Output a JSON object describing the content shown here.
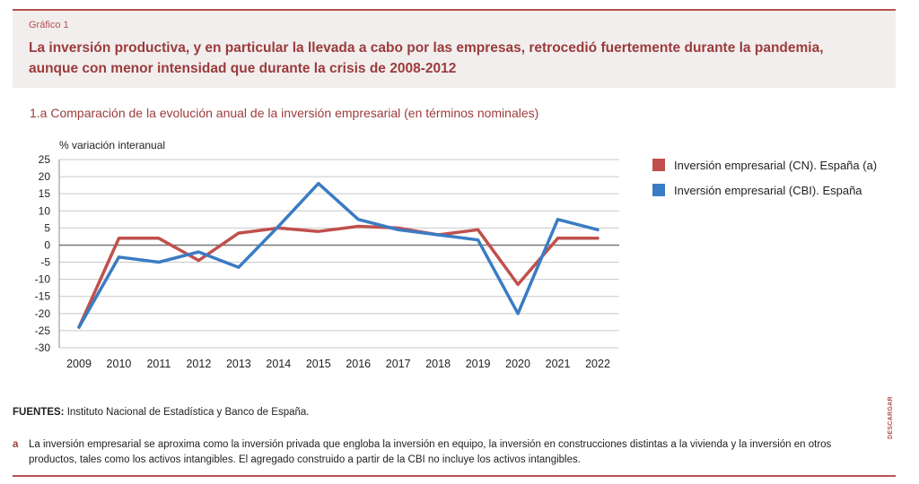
{
  "header": {
    "figure_label": "Gráfico 1",
    "title": "La inversión productiva, y en particular la llevada a cabo por las empresas, retrocedió fuertemente durante la pandemia, aunque con menor intensidad que durante la crisis de 2008-2012"
  },
  "chart_data": {
    "type": "line",
    "title": "1.a  Comparación de la evolución anual de la inversión empresarial (en términos nominales)",
    "ylabel": "% variación interanual",
    "xlabel": "",
    "categories": [
      "2009",
      "2010",
      "2011",
      "2012",
      "2013",
      "2014",
      "2015",
      "2016",
      "2017",
      "2018",
      "2019",
      "2020",
      "2021",
      "2022"
    ],
    "ylim": [
      -30,
      25
    ],
    "yticks": [
      25,
      20,
      15,
      10,
      5,
      0,
      -5,
      -10,
      -15,
      -20,
      -25,
      -30
    ],
    "grid": true,
    "legend_position": "right",
    "series": [
      {
        "name": "Inversión empresarial (CN). España (a)",
        "color": "#c0504d",
        "values": [
          -24,
          2,
          2,
          -4.5,
          3.5,
          5,
          4,
          5.5,
          5,
          3,
          4.5,
          -11.5,
          2,
          2
        ]
      },
      {
        "name": "Inversión empresarial (CBI). España",
        "color": "#3a7cc3",
        "values": [
          -24,
          -3.5,
          -5,
          -2,
          -6.5,
          5.5,
          18,
          7.5,
          4.5,
          3,
          1.5,
          -20,
          7.5,
          4.5
        ]
      }
    ]
  },
  "footer": {
    "sources_label": "FUENTES:",
    "sources_text": " Instituto Nacional de Estadística y Banco de España.",
    "note_marker": "a",
    "note_text": "La inversión empresarial se aproxima como la inversión privada que engloba la inversión en equipo, la inversión en construcciones distintas a la vivienda y la inversión en otros productos, tales como los activos intangibles. El agregado construido a partir de la CBI no incluye los activos intangibles.",
    "download_label": "DESCARGAR"
  }
}
